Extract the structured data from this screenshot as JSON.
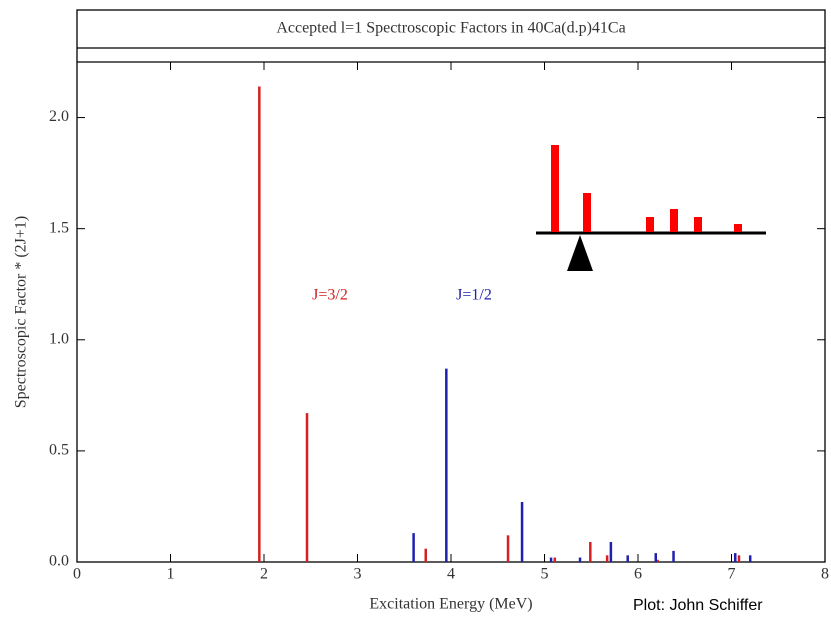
{
  "chart_data": {
    "type": "stem",
    "title": "Accepted l=1 Spectroscopic Factors in 40Ca(d.p)41Ca",
    "x_label": "Excitation Energy (MeV)",
    "y_label": "Spectroscopic Factor * (2J+1)",
    "credit": "Plot: John Schiffer",
    "xlim": [
      0,
      8
    ],
    "xticks": [
      0,
      1,
      2,
      3,
      4,
      5,
      6,
      7,
      8
    ],
    "ylim": [
      0,
      2.25
    ],
    "yticks": [
      {
        "value": 0,
        "label": "0.0"
      },
      0.5,
      {
        "value": 1,
        "label": "1.0"
      },
      1.5,
      {
        "value": 2,
        "label": "2.0"
      }
    ],
    "series": [
      {
        "name": "J=3/2",
        "color": "#d42020",
        "x": [
          1.95,
          2.46,
          3.73,
          4.61,
          5.11,
          5.49,
          5.67,
          6.21,
          7.08
        ],
        "values": [
          2.14,
          0.67,
          0.06,
          0.12,
          0.02,
          0.09,
          0.03,
          0.01,
          0.03
        ]
      },
      {
        "name": "J=1/2",
        "color": "#2020b0",
        "x": [
          3.6,
          3.95,
          4.76,
          5.07,
          5.38,
          5.71,
          5.89,
          6.19,
          6.38,
          7.04,
          7.2
        ],
        "values": [
          0.13,
          0.87,
          0.27,
          0.02,
          0.02,
          0.09,
          0.03,
          0.04,
          0.05,
          0.04,
          0.03
        ]
      }
    ]
  }
}
